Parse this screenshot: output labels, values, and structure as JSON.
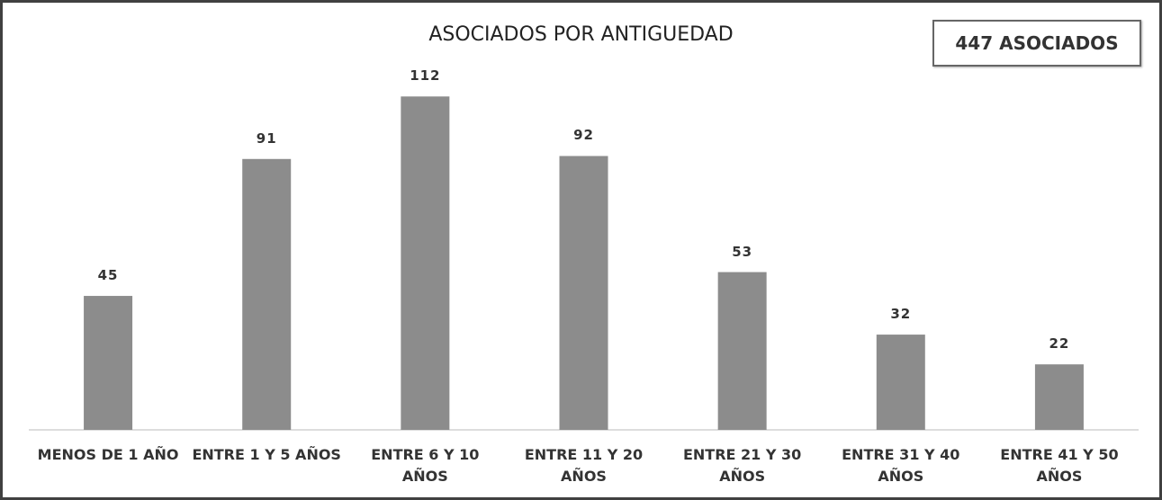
{
  "chart_data": {
    "type": "bar",
    "title": "ASOCIADOS POR ANTIGUEDAD",
    "annotation": "447 ASOCIADOS",
    "categories": [
      "MENOS DE 1 AÑO",
      "ENTRE 1 Y 5 AÑOS",
      "ENTRE 6 Y 10 AÑOS",
      "ENTRE 11 Y 20 AÑOS",
      "ENTRE 21 Y 30 AÑOS",
      "ENTRE 31 Y 40 AÑOS",
      "ENTRE 41 Y 50 AÑOS"
    ],
    "values": [
      45,
      91,
      112,
      92,
      53,
      32,
      22
    ],
    "color": "#8c8c8c"
  }
}
